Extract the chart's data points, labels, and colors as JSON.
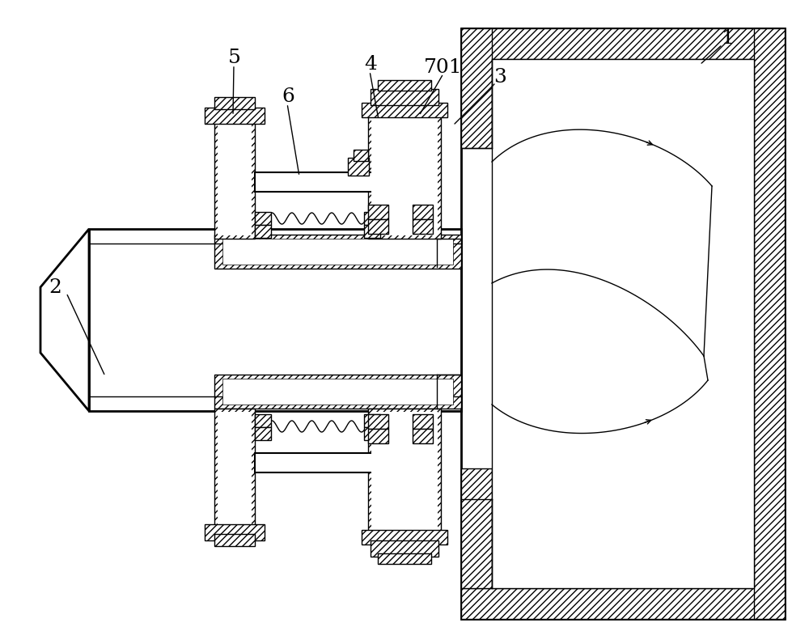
{
  "bg_color": "#ffffff",
  "lc": "#000000",
  "figsize": [
    10.0,
    7.96
  ],
  "dpi": 100
}
